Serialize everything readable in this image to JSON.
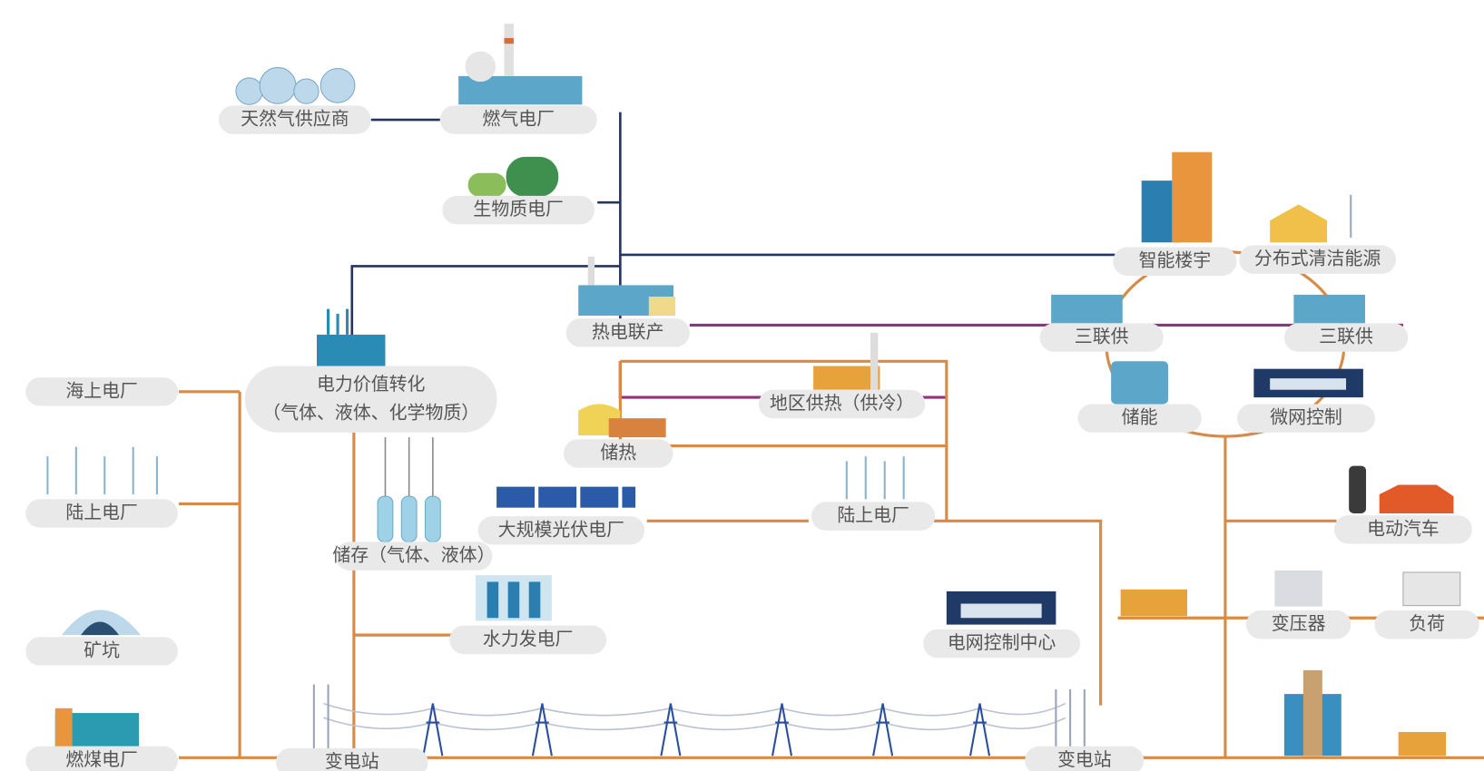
{
  "nodes": [
    {
      "label": "天然气供应商"
    },
    {
      "label": "燃气电厂"
    },
    {
      "label": "生物质电厂"
    },
    {
      "label": "热电联产"
    },
    {
      "label": "电力价值转化",
      "sublabel": "（气体、液体、化学物质）"
    },
    {
      "label": "海上电厂"
    },
    {
      "label": "陆上电厂"
    },
    {
      "label": "矿坑"
    },
    {
      "label": "燃煤电厂"
    },
    {
      "label": "储存（气体、液体）"
    },
    {
      "label": "水力发电厂"
    },
    {
      "label": "储热"
    },
    {
      "label": "地区供热（供冷）"
    },
    {
      "label": "大规模光伏电厂"
    },
    {
      "label": "陆上电厂"
    },
    {
      "label": "电网控制中心"
    },
    {
      "label": "变电站"
    },
    {
      "label": "变电站"
    },
    {
      "label": "智能楼宇"
    },
    {
      "label": "分布式清洁能源"
    },
    {
      "label": "三联供"
    },
    {
      "label": "三联供"
    },
    {
      "label": "储能"
    },
    {
      "label": "微网控制"
    },
    {
      "label": "电动汽车"
    },
    {
      "label": "变压器"
    },
    {
      "label": "负荷"
    }
  ]
}
